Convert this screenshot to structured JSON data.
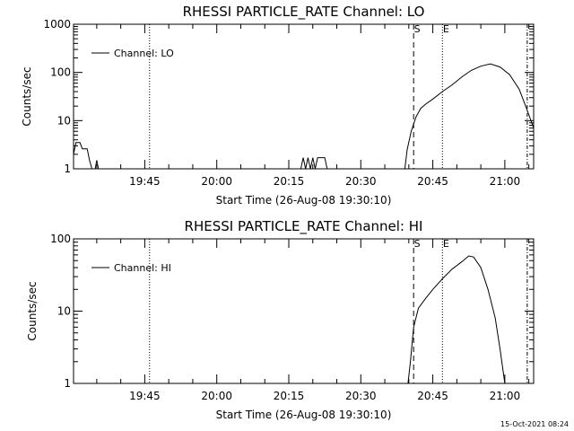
{
  "footer_timestamp": "15-Oct-2021 08:24",
  "chart_data": [
    {
      "type": "line",
      "title": "RHESSI PARTICLE_RATE Channel: LO",
      "xlabel": "Start Time (26-Aug-08 19:30:10)",
      "ylabel": "Counts/sec",
      "yscale": "log",
      "ylim": [
        1,
        1000
      ],
      "xlim": [
        "19:30:10",
        "21:06:00"
      ],
      "grid": false,
      "legend_position": "top-left",
      "x_ticks": [
        "19:45",
        "20:00",
        "20:15",
        "20:30",
        "20:45",
        "21:00"
      ],
      "y_ticks": [
        "1",
        "10",
        "100",
        "1000"
      ],
      "series": [
        {
          "name": "Channel: LO",
          "points": [
            [
              "19:30:10",
              2.0
            ],
            [
              "19:30:40",
              3.5
            ],
            [
              "19:31:30",
              3.5
            ],
            [
              "19:32:00",
              2.6
            ],
            [
              "19:33:00",
              2.6
            ],
            [
              "19:33:30",
              1.5
            ],
            [
              "19:34:00",
              1.0
            ],
            [
              "19:34:40",
              1.0
            ],
            [
              "19:35:00",
              1.5
            ],
            [
              "19:35:20",
              1.0
            ],
            [
              "20:17:30",
              1.0
            ],
            [
              "20:18:00",
              1.7
            ],
            [
              "20:18:30",
              1.0
            ],
            [
              "20:19:00",
              1.7
            ],
            [
              "20:19:30",
              1.0
            ],
            [
              "20:20:00",
              1.7
            ],
            [
              "20:20:30",
              1.0
            ],
            [
              "20:21:00",
              1.7
            ],
            [
              "20:22:30",
              1.7
            ],
            [
              "20:23:00",
              1.0
            ],
            [
              "20:39:10",
              1.0
            ],
            [
              "20:39:40",
              2.5
            ],
            [
              "20:40:30",
              6.0
            ],
            [
              "20:41:30",
              12.0
            ],
            [
              "20:42:30",
              18.0
            ],
            [
              "20:43:30",
              22.0
            ],
            [
              "20:45:00",
              28.0
            ],
            [
              "20:47:00",
              40.0
            ],
            [
              "20:49:00",
              55.0
            ],
            [
              "20:51:00",
              80.0
            ],
            [
              "20:53:00",
              110.0
            ],
            [
              "20:55:00",
              135.0
            ],
            [
              "20:57:00",
              150.0
            ],
            [
              "20:59:00",
              130.0
            ],
            [
              "21:01:00",
              90.0
            ],
            [
              "21:03:00",
              45.0
            ],
            [
              "21:04:30",
              18.0
            ],
            [
              "21:06:00",
              7.0
            ]
          ]
        }
      ],
      "markers": [
        {
          "label": "S",
          "time": "20:41:00",
          "style": "dashed"
        },
        {
          "label": "E",
          "time": "20:47:00",
          "style": "dotted"
        }
      ],
      "extra_vlines": [
        {
          "time": "19:46:00",
          "style": "dotted"
        },
        {
          "time": "21:04:40",
          "style": "dash-dot"
        }
      ]
    },
    {
      "type": "line",
      "title": "RHESSI PARTICLE_RATE Channel: HI",
      "xlabel": "Start Time (26-Aug-08 19:30:10)",
      "ylabel": "Counts/sec",
      "yscale": "log",
      "ylim": [
        1,
        100
      ],
      "xlim": [
        "19:30:10",
        "21:06:00"
      ],
      "grid": false,
      "legend_position": "top-left",
      "x_ticks": [
        "19:45",
        "20:00",
        "20:15",
        "20:30",
        "20:45",
        "21:00"
      ],
      "y_ticks": [
        "1",
        "10",
        "100"
      ],
      "series": [
        {
          "name": "Channel: HI",
          "points": [
            [
              "20:39:50",
              1.0
            ],
            [
              "20:40:20",
              2.0
            ],
            [
              "20:41:00",
              6.0
            ],
            [
              "20:42:00",
              11.0
            ],
            [
              "20:43:30",
              15.0
            ],
            [
              "20:45:00",
              20.0
            ],
            [
              "20:47:00",
              28.0
            ],
            [
              "20:49:00",
              38.0
            ],
            [
              "20:51:00",
              48.0
            ],
            [
              "20:52:30",
              58.0
            ],
            [
              "20:53:30",
              56.0
            ],
            [
              "20:55:00",
              40.0
            ],
            [
              "20:56:30",
              20.0
            ],
            [
              "20:58:00",
              8.0
            ],
            [
              "20:59:00",
              3.0
            ],
            [
              "21:00:00",
              1.0
            ]
          ]
        }
      ],
      "markers": [
        {
          "label": "S",
          "time": "20:41:00",
          "style": "dashed"
        },
        {
          "label": "E",
          "time": "20:47:00",
          "style": "dotted"
        }
      ],
      "extra_vlines": [
        {
          "time": "19:46:00",
          "style": "dotted"
        },
        {
          "time": "21:04:40",
          "style": "dash-dot"
        }
      ]
    }
  ]
}
